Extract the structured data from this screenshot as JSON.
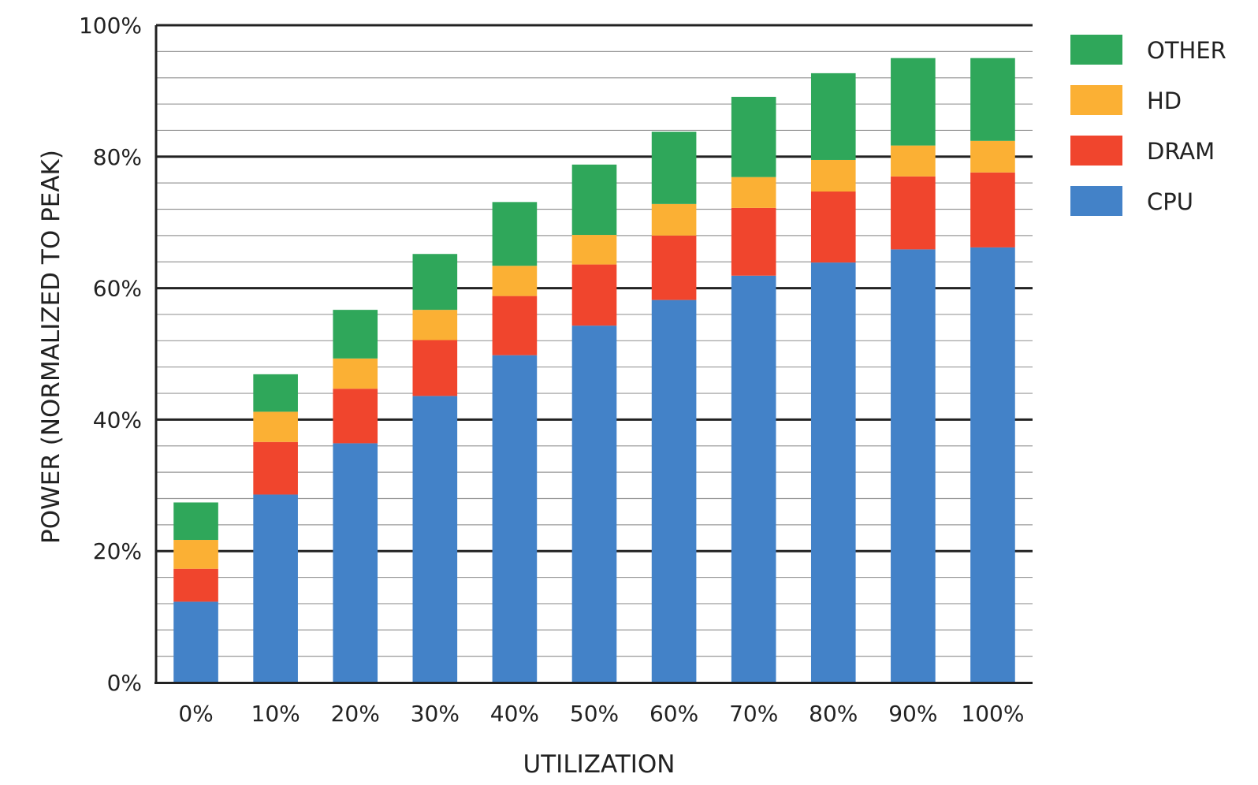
{
  "chart_data": {
    "type": "bar",
    "stacked": true,
    "categories": [
      "0%",
      "10%",
      "20%",
      "30%",
      "40%",
      "50%",
      "60%",
      "70%",
      "80%",
      "90%",
      "100%"
    ],
    "series": [
      {
        "name": "CPU",
        "color": "#4382c8",
        "values": [
          12.3,
          28.6,
          36.4,
          43.6,
          49.8,
          54.3,
          58.2,
          61.9,
          63.9,
          65.9,
          66.2
        ]
      },
      {
        "name": "DRAM",
        "color": "#f0452d",
        "values": [
          5.0,
          8.0,
          8.3,
          8.5,
          9.0,
          9.3,
          9.8,
          10.3,
          10.8,
          11.1,
          11.4
        ]
      },
      {
        "name": "HD",
        "color": "#fbb034",
        "values": [
          4.4,
          4.6,
          4.6,
          4.6,
          4.6,
          4.5,
          4.8,
          4.7,
          4.8,
          4.7,
          4.8
        ]
      },
      {
        "name": "OTHER",
        "color": "#2fa75a",
        "values": [
          5.7,
          5.7,
          7.4,
          8.5,
          9.7,
          10.7,
          11.0,
          12.2,
          13.2,
          13.3,
          12.6
        ]
      }
    ],
    "xlabel": "UTILIZATION",
    "ylabel": "POWER (NORMALIZED TO PEAK)",
    "ylim": [
      0,
      100
    ],
    "yticks": [
      "0%",
      "20%",
      "40%",
      "60%",
      "80%",
      "100%"
    ],
    "grid": true,
    "legend": {
      "position": "top-right",
      "order": [
        "OTHER",
        "HD",
        "DRAM",
        "CPU"
      ]
    }
  }
}
